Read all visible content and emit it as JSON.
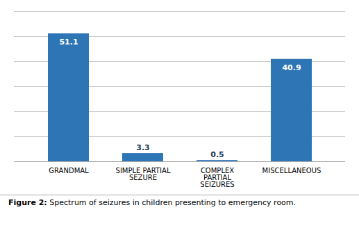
{
  "chart_data": {
    "type": "bar",
    "categories": [
      "GRANDMAL",
      "SIMPLE PARTIAL\nSEZURE",
      "COMPLEX\nPARTIAL\nSEIZURES",
      "MISCELLANEOUS"
    ],
    "values": [
      51.1,
      3.3,
      0.5,
      40.9
    ],
    "color": "#2E75B6",
    "ylim": [
      0,
      60
    ],
    "yticks": [
      0,
      10,
      20,
      30,
      40,
      50,
      60
    ],
    "grid": true,
    "data_labels": true,
    "tick_labels": "x",
    "caption": "Figure 2: Spectrum of seizures in children presenting to emergency room."
  }
}
